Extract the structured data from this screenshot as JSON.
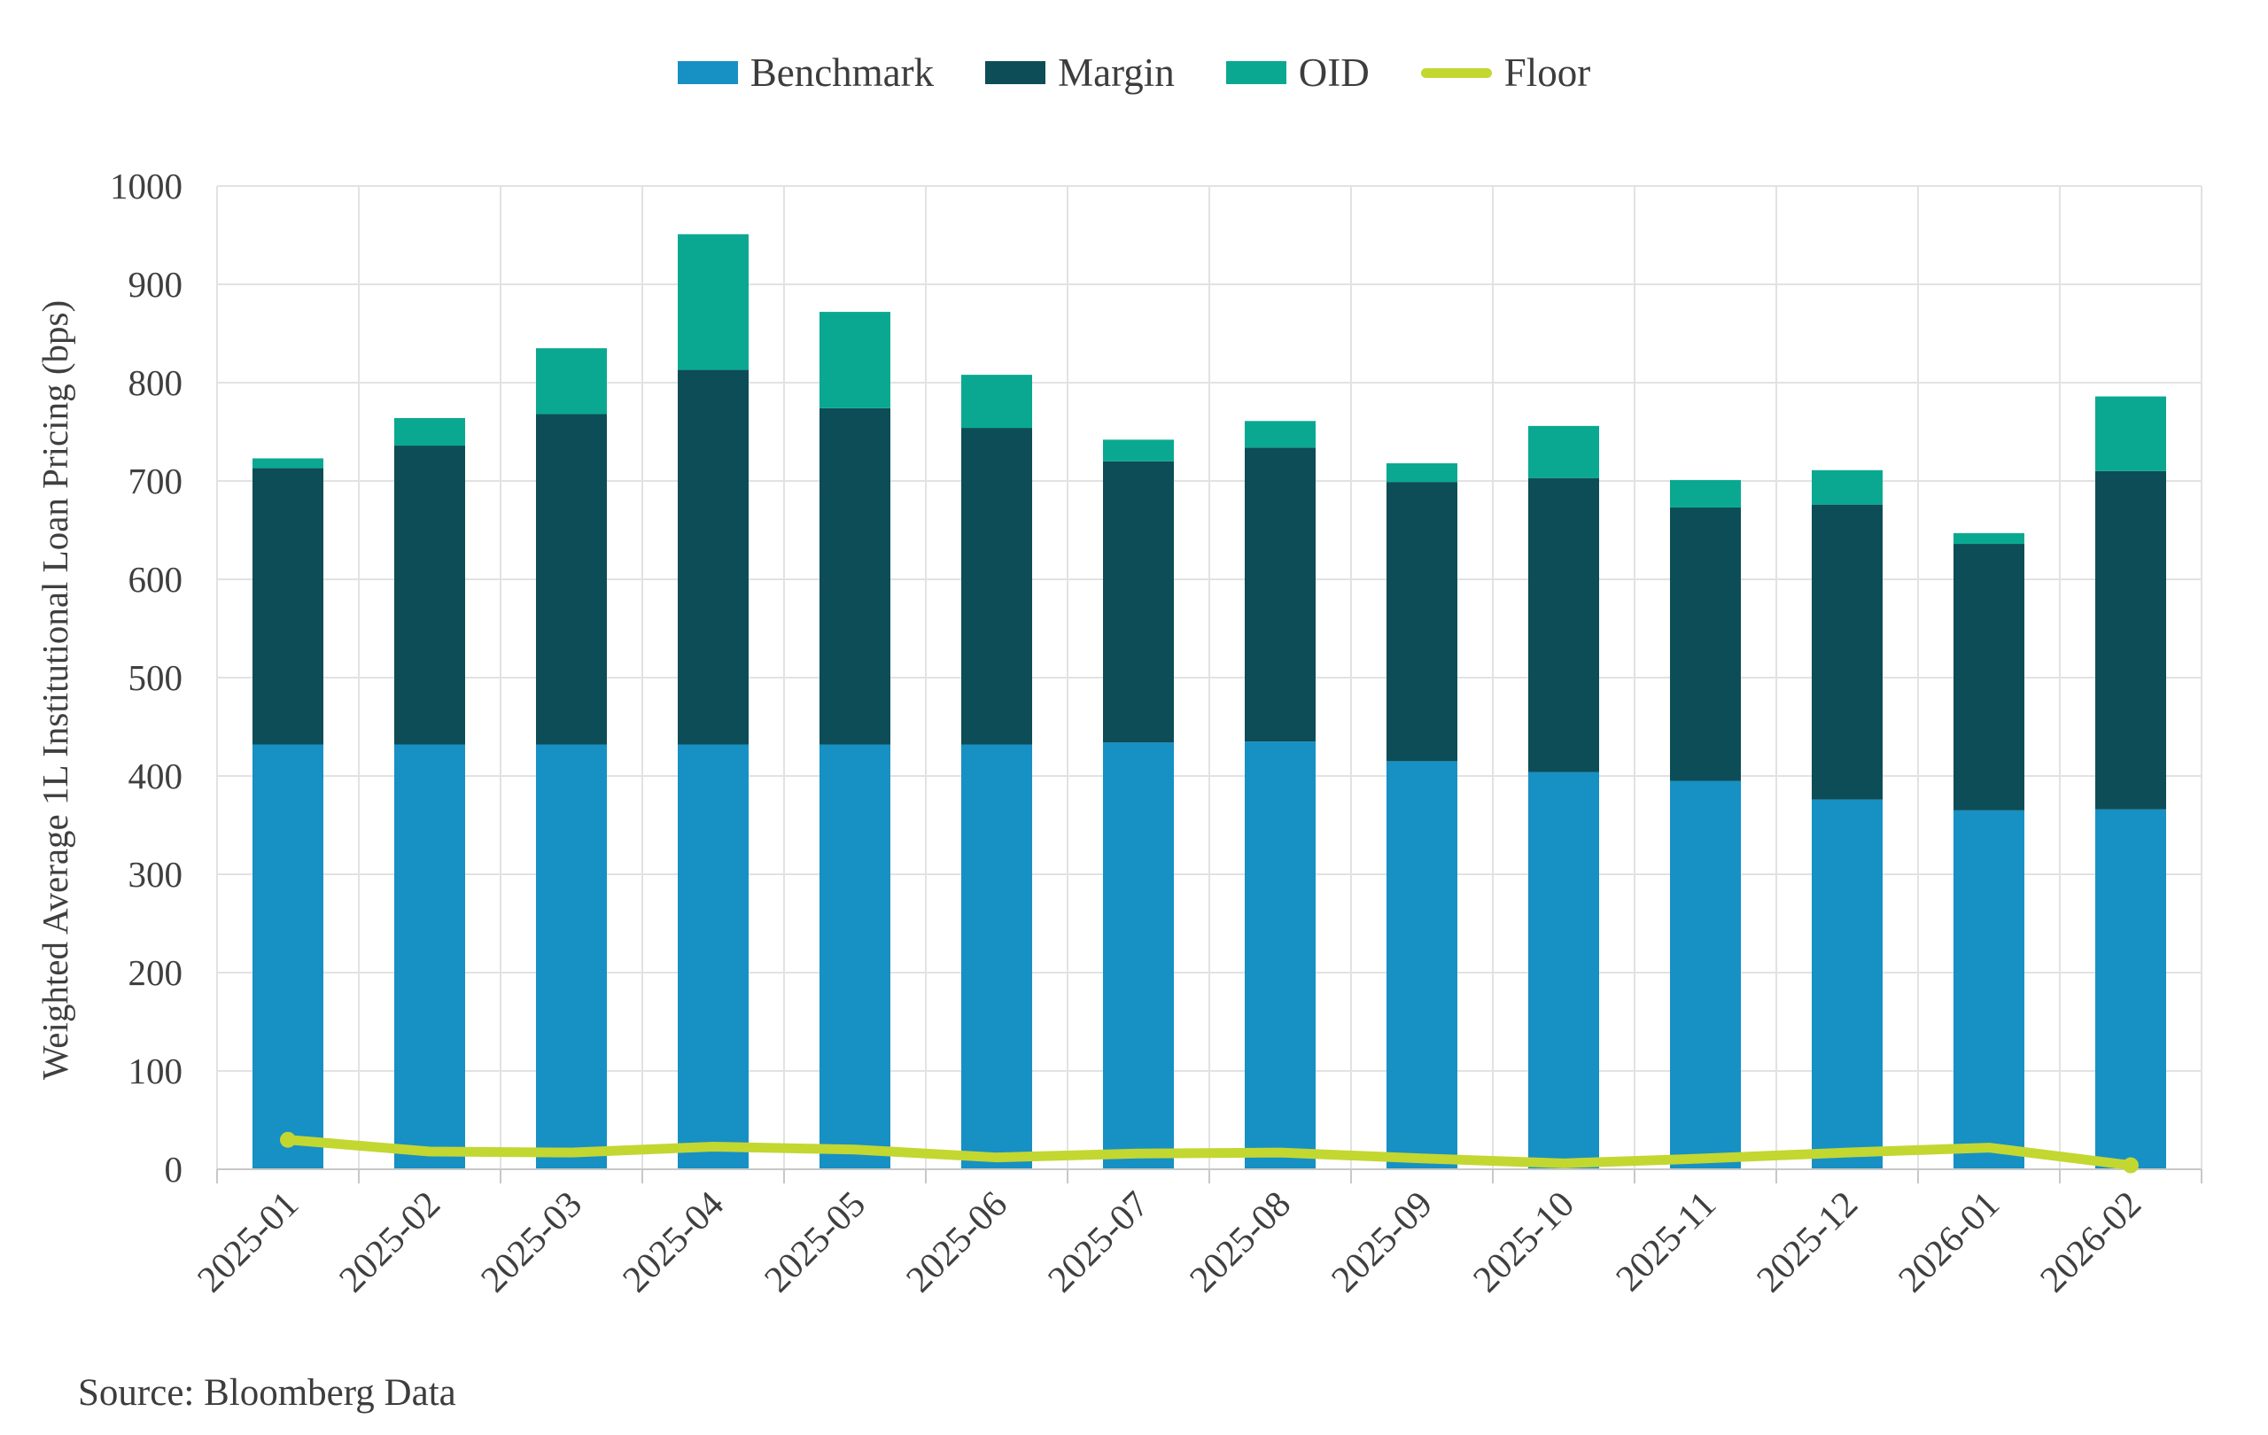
{
  "chart_data": {
    "type": "stacked_bar_line",
    "title": "",
    "ylabel": "Weighted Average 1L Institutional Loan Pricing (bps)",
    "xlabel": "",
    "source": "Source: Bloomberg Data",
    "categories": [
      "2025-01",
      "2025-02",
      "2025-03",
      "2025-04",
      "2025-05",
      "2025-06",
      "2025-07",
      "2025-08",
      "2025-09",
      "2025-10",
      "2025-11",
      "2025-12",
      "2026-01",
      "2026-02"
    ],
    "series": [
      {
        "name": "Benchmark",
        "type": "bar",
        "color": "#1790c4",
        "values": [
          432,
          432,
          432,
          432,
          432,
          432,
          434,
          435,
          415,
          404,
          395,
          376,
          365,
          366
        ]
      },
      {
        "name": "Margin",
        "type": "bar",
        "color": "#0d4d57",
        "values": [
          281,
          304,
          336,
          381,
          342,
          322,
          286,
          299,
          284,
          299,
          278,
          300,
          271,
          344
        ]
      },
      {
        "name": "OID",
        "type": "bar",
        "color": "#0aa891",
        "values": [
          10,
          28,
          67,
          138,
          98,
          54,
          22,
          27,
          19,
          53,
          28,
          35,
          11,
          76
        ]
      },
      {
        "name": "Floor",
        "type": "line",
        "color": "#c3d731",
        "values": [
          30,
          18,
          17,
          23,
          20,
          12,
          16,
          17,
          11,
          6,
          11,
          17,
          22,
          4
        ]
      }
    ],
    "stacked_totals": [
      723,
      764,
      835,
      951,
      872,
      808,
      742,
      761,
      718,
      756,
      701,
      711,
      647,
      786
    ],
    "ylim": [
      0,
      1000
    ],
    "ytick_step": 100,
    "yticks": [
      0,
      100,
      200,
      300,
      400,
      500,
      600,
      700,
      800,
      900,
      1000
    ],
    "grid": true,
    "legend_position": "top",
    "axis_colors": {
      "tick_text": "#3f3f3f",
      "grid_line": "#e2e2e2",
      "axis_line": "#c8c8c8"
    }
  }
}
